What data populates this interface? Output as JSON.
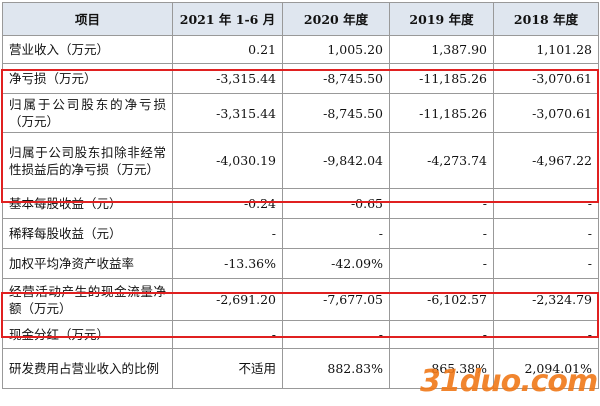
{
  "table": {
    "header": [
      "项目",
      "2021 年 1-6 月",
      "2020 年度",
      "2019 年度",
      "2018 年度"
    ],
    "rows": [
      [
        "营业收入（万元）",
        "0.21",
        "1,005.20",
        "1,387.90",
        "1,101.28"
      ],
      [
        "净亏损（万元）",
        "-3,315.44",
        "-8,745.50",
        "-11,185.26",
        "-3,070.61"
      ],
      [
        "归属于公司股东的净亏损（万元）",
        "-3,315.44",
        "-8,745.50",
        "-11,185.26",
        "-3,070.61"
      ],
      [
        "归属于公司股东扣除非经常性损益后的净亏损（万元）",
        "-4,030.19",
        "-9,842.04",
        "-4,273.74",
        "-4,967.22"
      ],
      [
        "基本每股收益（元）",
        "-0.24",
        "-0.65",
        "-",
        "-"
      ],
      [
        "稀释每股收益（元）",
        "-",
        "-",
        "-",
        "-"
      ],
      [
        "加权平均净资产收益率",
        "-13.36%",
        "-42.09%",
        "-",
        "-"
      ],
      [
        "经营活动产生的现金流量净额（万元）",
        "-2,691.20",
        "-7,677.05",
        "-6,102.57",
        "-2,324.79"
      ],
      [
        "现金分红（万元）",
        "-",
        "-",
        "-",
        "-"
      ],
      [
        "研发费用占营业收入的比例",
        "不适用",
        "882.83%",
        "865.38%",
        "2,094.01%"
      ]
    ]
  },
  "watermark": "31duo.com"
}
